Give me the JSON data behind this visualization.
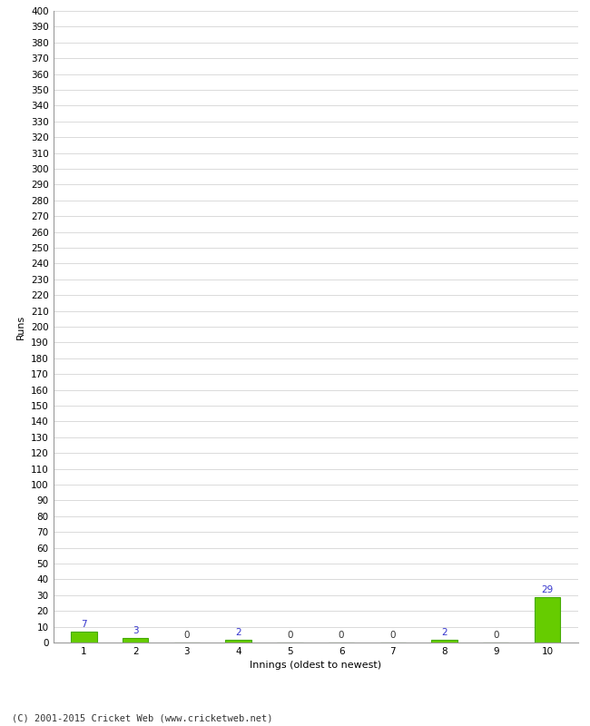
{
  "xlabel": "Innings (oldest to newest)",
  "ylabel": "Runs",
  "categories": [
    "1",
    "2",
    "3",
    "4",
    "5",
    "6",
    "7",
    "8",
    "9",
    "10"
  ],
  "values": [
    7,
    3,
    0,
    2,
    0,
    0,
    0,
    2,
    0,
    29
  ],
  "bar_colors": [
    "#66cc00",
    "#66cc00",
    "#66cc00",
    "#66cc00",
    "#66cc00",
    "#66cc00",
    "#66cc00",
    "#66cc00",
    "#66cc00",
    "#66cc00"
  ],
  "bar_edge_colors": [
    "#44aa00",
    "#44aa00",
    "#44aa00",
    "#44aa00",
    "#44aa00",
    "#44aa00",
    "#44aa00",
    "#44aa00",
    "#44aa00",
    "#44aa00"
  ],
  "label_colors": [
    "#3333cc",
    "#3333cc",
    "#333333",
    "#3333cc",
    "#333333",
    "#333333",
    "#333333",
    "#3333cc",
    "#333333",
    "#3333cc"
  ],
  "ylim": [
    0,
    400
  ],
  "ytick_step": 10,
  "background_color": "#ffffff",
  "grid_color": "#cccccc",
  "footer": "(C) 2001-2015 Cricket Web (www.cricketweb.net)",
  "axis_label_fontsize": 8,
  "tick_fontsize": 7.5,
  "footer_fontsize": 7.5,
  "value_label_fontsize": 7.5
}
